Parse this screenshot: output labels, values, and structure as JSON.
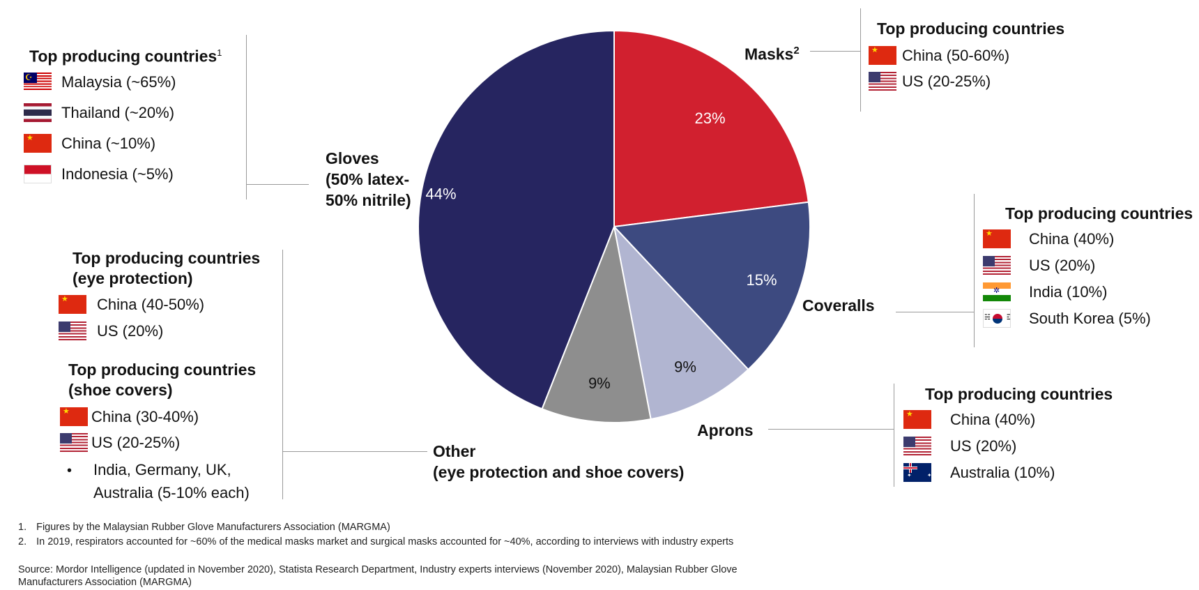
{
  "chart_data": {
    "type": "pie",
    "title": "",
    "slices": [
      {
        "label": "Masks",
        "value": 23,
        "display": "23%",
        "color": "#d1202f"
      },
      {
        "label": "Coveralls",
        "value": 15,
        "display": "15%",
        "color": "#3d4a80"
      },
      {
        "label": "Aprons",
        "value": 9,
        "display": "9%",
        "color": "#b1b5d1"
      },
      {
        "label": "Other (eye protection and shoe covers)",
        "value": 9,
        "display": "9%",
        "color": "#8e8e8e"
      },
      {
        "label": "Gloves (50% latex-50% nitrile)",
        "value": 44,
        "display": "44%",
        "color": "#262560"
      }
    ]
  },
  "labels": {
    "masks": "Masks",
    "masks_sup": "2",
    "coveralls": "Coveralls",
    "aprons": "Aprons",
    "other_line1": "Other",
    "other_line2": "(eye protection and shoe covers)",
    "gloves_line1": "Gloves",
    "gloves_line2": "(50% latex-",
    "gloves_line3": "50% nitrile)"
  },
  "gloves_box": {
    "header": "Top producing countries",
    "header_sup": "1",
    "items": [
      {
        "flag": "malaysia-flag",
        "text": "Malaysia (~65%)"
      },
      {
        "flag": "thailand-flag",
        "text": "Thailand (~20%)"
      },
      {
        "flag": "china-flag",
        "text": "China (~10%)"
      },
      {
        "flag": "indonesia-flag",
        "text": "Indonesia (~5%)"
      }
    ]
  },
  "masks_box": {
    "header": "Top producing countries",
    "items": [
      {
        "flag": "china-flag",
        "text": "China (50-60%)"
      },
      {
        "flag": "us-flag",
        "text": "US (20-25%)"
      }
    ]
  },
  "coveralls_box": {
    "header": "Top producing countries",
    "items": [
      {
        "flag": "china-flag",
        "text": "China (40%)"
      },
      {
        "flag": "us-flag",
        "text": "US (20%)"
      },
      {
        "flag": "india-flag",
        "text": "India (10%)"
      },
      {
        "flag": "south-korea-flag",
        "text": "South Korea (5%)"
      }
    ]
  },
  "aprons_box": {
    "header": "Top producing countries",
    "items": [
      {
        "flag": "china-flag",
        "text": "China (40%)"
      },
      {
        "flag": "us-flag",
        "text": "US (20%)"
      },
      {
        "flag": "australia-flag",
        "text": "Australia (10%)"
      }
    ]
  },
  "other_box": {
    "eye_header_line1": "Top producing countries",
    "eye_header_line2": "(eye protection)",
    "eye_items": [
      {
        "flag": "china-flag",
        "text": "China (40-50%)"
      },
      {
        "flag": "us-flag",
        "text": "US (20%)"
      }
    ],
    "shoe_header_line1": "Top producing countries",
    "shoe_header_line2": "(shoe covers)",
    "shoe_items": [
      {
        "flag": "china-flag",
        "text": "China (30-40%)"
      },
      {
        "flag": "us-flag",
        "text": "US (20-25%)"
      }
    ],
    "shoe_bullet_line1": "India, Germany, UK,",
    "shoe_bullet_line2": "Australia (5-10% each)"
  },
  "footnotes": {
    "note1_num": "1.",
    "note1": "Figures by the Malaysian Rubber Glove Manufacturers Association (MARGMA)",
    "note2_num": "2.",
    "note2": "In 2019, respirators accounted for ~60% of the medical masks market and surgical masks accounted for ~40%, according to interviews with industry experts",
    "source_line1": "Source: Mordor Intelligence (updated in November 2020), Statista Research Department, Industry experts interviews (November 2020), Malaysian Rubber Glove",
    "source_line2": "Manufacturers Association (MARGMA)"
  }
}
